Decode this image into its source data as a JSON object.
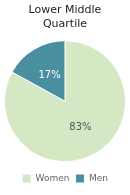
{
  "chart_data": {
    "type": "pie",
    "title": "Lower Middle\nQuartile",
    "categories": [
      "Women",
      "Men"
    ],
    "values": [
      83,
      17
    ],
    "colors": [
      "#d5e8c4",
      "#4a8fa0"
    ],
    "data_labels": true,
    "value_labels": [
      "83%",
      "17%"
    ],
    "legend": "bottom"
  }
}
